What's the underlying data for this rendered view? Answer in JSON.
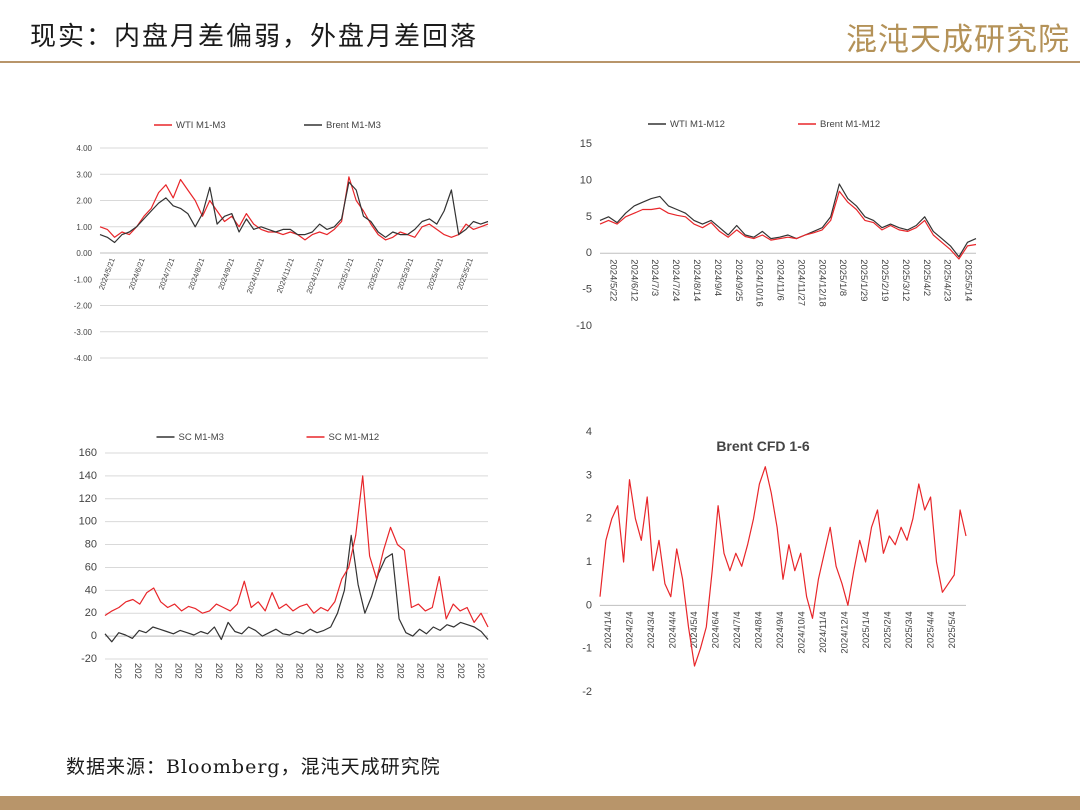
{
  "header": {
    "title": "现实：内盘月差偏弱，外盘月差回落",
    "logo_text": "混沌天成研究院"
  },
  "footer": {
    "source": "数据来源：Bloomberg，混沌天成研究院"
  },
  "colors": {
    "accent": "#b8956a",
    "red": "#e8262a",
    "dark": "#333333",
    "grid": "#d9d9d9"
  },
  "chart_data": [
    {
      "type": "line",
      "title": "",
      "x_ticks": [
        "2024/5/21",
        "2024/6/21",
        "2024/7/21",
        "2024/8/21",
        "2024/9/21",
        "2024/10/21",
        "2024/11/21",
        "2024/12/21",
        "2025/1/21",
        "2025/2/21",
        "2025/3/21",
        "2025/4/21",
        "2025/5/21"
      ],
      "y_ticks": [
        "4.00",
        "3.00",
        "2.00",
        "1.00",
        "0.00",
        "-1.00",
        "-2.00",
        "-3.00",
        "-4.00"
      ],
      "ylim": [
        -4,
        4
      ],
      "legend": "top",
      "series": [
        {
          "name": "WTI M1-M3",
          "color": "#e8262a",
          "values": [
            1.0,
            0.9,
            0.6,
            0.8,
            0.7,
            1.0,
            1.4,
            1.7,
            2.3,
            2.6,
            2.1,
            2.8,
            2.4,
            2.0,
            1.4,
            2.0,
            1.6,
            1.2,
            1.4,
            1.0,
            1.5,
            1.1,
            0.9,
            0.8,
            0.8,
            0.7,
            0.8,
            0.7,
            0.5,
            0.7,
            0.8,
            0.7,
            0.9,
            1.2,
            2.9,
            2.0,
            1.6,
            1.1,
            0.7,
            0.5,
            0.6,
            0.8,
            0.7,
            0.6,
            1.0,
            1.1,
            0.9,
            0.7,
            0.6,
            0.7,
            1.1,
            0.9,
            1.0,
            1.1
          ]
        },
        {
          "name": "Brent M1-M3",
          "color": "#333333",
          "values": [
            0.7,
            0.6,
            0.4,
            0.7,
            0.8,
            1.0,
            1.3,
            1.6,
            1.9,
            2.1,
            1.8,
            1.7,
            1.5,
            1.0,
            1.5,
            2.5,
            1.1,
            1.4,
            1.5,
            0.8,
            1.3,
            0.9,
            1.0,
            0.9,
            0.8,
            0.9,
            0.9,
            0.7,
            0.7,
            0.8,
            1.1,
            0.9,
            1.0,
            1.3,
            2.7,
            2.4,
            1.4,
            1.2,
            0.8,
            0.6,
            0.8,
            0.7,
            0.7,
            0.9,
            1.2,
            1.3,
            1.1,
            1.6,
            2.4,
            0.7,
            0.9,
            1.2,
            1.1,
            1.2
          ]
        }
      ]
    },
    {
      "type": "line",
      "title": "",
      "x_ticks": [
        "2024/5/22",
        "2024/6/12",
        "2024/7/3",
        "2024/7/24",
        "2024/8/14",
        "2024/9/4",
        "2024/9/25",
        "2024/10/16",
        "2024/11/6",
        "2024/11/27",
        "2024/12/18",
        "2025/1/8",
        "2025/1/29",
        "2025/2/19",
        "2025/3/12",
        "2025/4/2",
        "2025/4/23",
        "2025/5/14"
      ],
      "y_ticks": [
        "15",
        "10",
        "5",
        "0",
        "-5",
        "-10"
      ],
      "ylim": [
        -10,
        15
      ],
      "legend": "top",
      "series": [
        {
          "name": "WTI M1-M12",
          "color": "#333333",
          "values": [
            4.5,
            5.0,
            4.2,
            5.5,
            6.5,
            7.0,
            7.5,
            7.8,
            6.5,
            6.0,
            5.5,
            4.5,
            4.0,
            4.5,
            3.5,
            2.5,
            3.8,
            2.5,
            2.2,
            3.0,
            2.0,
            2.2,
            2.5,
            2.0,
            2.5,
            3.0,
            3.5,
            5.0,
            9.5,
            7.5,
            6.5,
            5.0,
            4.5,
            3.5,
            4.0,
            3.5,
            3.2,
            3.8,
            5.0,
            3.0,
            2.0,
            1.0,
            -0.5,
            1.5,
            2.0
          ]
        },
        {
          "name": "Brent M1-M12",
          "color": "#e8262a",
          "values": [
            4.0,
            4.5,
            4.0,
            5.0,
            5.5,
            6.0,
            6.0,
            6.2,
            5.5,
            5.2,
            5.0,
            4.0,
            3.5,
            4.2,
            3.0,
            2.2,
            3.2,
            2.3,
            2.0,
            2.5,
            1.8,
            2.0,
            2.2,
            2.0,
            2.5,
            2.8,
            3.2,
            4.5,
            8.5,
            7.0,
            6.0,
            4.5,
            4.2,
            3.2,
            3.8,
            3.2,
            3.0,
            3.5,
            4.5,
            2.5,
            1.5,
            0.5,
            -0.8,
            1.0,
            1.2
          ]
        }
      ]
    },
    {
      "type": "line",
      "title": "",
      "x_ticks": [
        "202",
        "202",
        "202",
        "202",
        "202",
        "202",
        "202",
        "202",
        "202",
        "202",
        "202",
        "202",
        "202",
        "202",
        "202",
        "202",
        "202",
        "202",
        "202"
      ],
      "y_ticks": [
        "160",
        "140",
        "120",
        "100",
        "80",
        "60",
        "40",
        "20",
        "0",
        "-20"
      ],
      "ylim": [
        -20,
        160
      ],
      "legend": "top",
      "series": [
        {
          "name": "SC M1-M3",
          "color": "#333333",
          "values": [
            2,
            -5,
            3,
            1,
            -2,
            5,
            3,
            8,
            6,
            4,
            2,
            5,
            3,
            1,
            4,
            2,
            8,
            -3,
            12,
            4,
            2,
            8,
            5,
            0,
            3,
            6,
            2,
            1,
            4,
            2,
            6,
            3,
            5,
            8,
            20,
            40,
            88,
            45,
            20,
            35,
            55,
            68,
            72,
            15,
            3,
            0,
            6,
            2,
            8,
            5,
            10,
            8,
            12,
            10,
            8,
            4,
            -3
          ]
        },
        {
          "name": "SC M1-M12",
          "color": "#e8262a",
          "values": [
            18,
            22,
            25,
            30,
            32,
            28,
            38,
            42,
            30,
            25,
            28,
            22,
            26,
            24,
            20,
            22,
            28,
            25,
            22,
            28,
            48,
            25,
            30,
            22,
            38,
            24,
            28,
            22,
            26,
            28,
            20,
            25,
            22,
            30,
            50,
            60,
            88,
            140,
            70,
            50,
            75,
            95,
            80,
            75,
            25,
            28,
            22,
            25,
            52,
            15,
            28,
            22,
            25,
            12,
            20,
            8
          ]
        }
      ]
    },
    {
      "type": "line",
      "title": "Brent CFD 1-6",
      "x_ticks": [
        "2024/1/4",
        "2024/2/4",
        "2024/3/4",
        "2024/4/4",
        "2024/5/4",
        "2024/6/4",
        "2024/7/4",
        "2024/8/4",
        "2024/9/4",
        "2024/10/4",
        "2024/11/4",
        "2024/12/4",
        "2025/1/4",
        "2025/2/4",
        "2025/3/4",
        "2025/4/4",
        "2025/5/4"
      ],
      "y_ticks": [
        "4",
        "3",
        "2",
        "1",
        "0",
        "-1",
        "-2"
      ],
      "ylim": [
        -2,
        4
      ],
      "legend": "none",
      "series": [
        {
          "name": "",
          "color": "#e8262a",
          "values": [
            0.2,
            1.5,
            2.0,
            2.3,
            1.0,
            2.9,
            2.0,
            1.5,
            2.5,
            0.8,
            1.5,
            0.5,
            0.2,
            1.3,
            0.6,
            -0.5,
            -1.4,
            -1.0,
            -0.5,
            0.8,
            2.3,
            1.2,
            0.8,
            1.2,
            0.9,
            1.4,
            2.0,
            2.8,
            3.2,
            2.6,
            1.8,
            0.6,
            1.4,
            0.8,
            1.2,
            0.2,
            -0.3,
            0.6,
            1.2,
            1.8,
            0.9,
            0.5,
            0.0,
            0.8,
            1.5,
            1.0,
            1.8,
            2.2,
            1.2,
            1.6,
            1.4,
            1.8,
            1.5,
            2.0,
            2.8,
            2.2,
            2.5,
            1.0,
            0.3,
            0.5,
            0.7,
            2.2,
            1.6
          ]
        }
      ]
    }
  ]
}
